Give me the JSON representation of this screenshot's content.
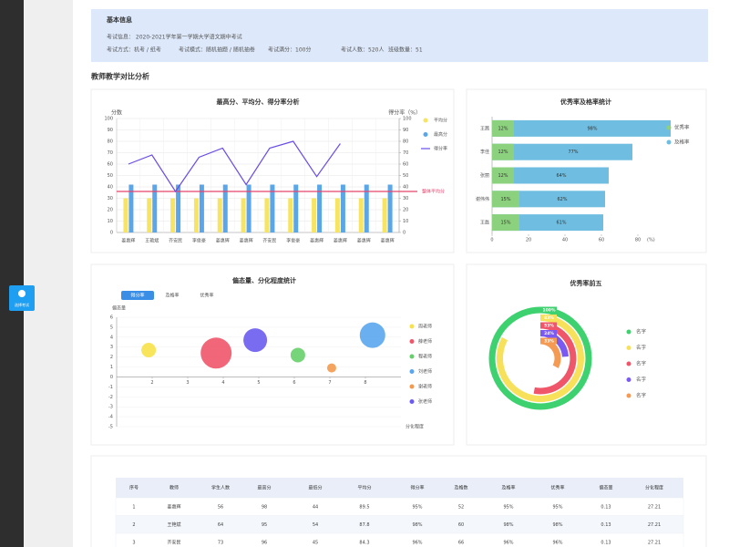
{
  "sidebar": {
    "button": "选择考试"
  },
  "info": {
    "title": "基本信息",
    "exam": "考试信息：  2020-2021学年第一学期大学语文期中考试",
    "fields": [
      "考试方式：机考 / 纸考",
      "考试模式：随机抽题 / 随机抽卷",
      "考试满分：100分",
      "考试人数：520人",
      "班级数量：51"
    ]
  },
  "section_title": "教师教学对比分析",
  "chart_data": [
    {
      "type": "bar",
      "title": "最高分、平均分、得分率分析",
      "y_label": "分数",
      "y2_label": "得分率（%）",
      "categories": [
        "姜惠辉",
        "王艳斌",
        "齐安民",
        "李俊豪",
        "姜惠辉",
        "姜惠辉",
        "齐安民",
        "李俊豪",
        "姜惠辉",
        "姜惠辉",
        "姜惠辉",
        "姜惠辉"
      ],
      "series": [
        {
          "name": "平均分",
          "color": "#f7e463",
          "values": [
            30,
            30,
            30,
            30,
            30,
            30,
            30,
            30,
            30,
            30,
            30,
            30
          ]
        },
        {
          "name": "最高分",
          "color": "#5aa6e8",
          "values": [
            42,
            42,
            42,
            42,
            42,
            42,
            42,
            42,
            42,
            42,
            42,
            42
          ]
        },
        {
          "name": "得分率",
          "type": "line",
          "axis": "y2",
          "color": "#6a4de8",
          "values": [
            60,
            68,
            36,
            66,
            74,
            42,
            74,
            80,
            49,
            78,
            null,
            null
          ]
        }
      ],
      "reference": {
        "name": "整体平均分",
        "value": 36,
        "color": "#e8436b"
      },
      "ylim": [
        0,
        100
      ],
      "yticks": [
        0,
        10,
        20,
        30,
        40,
        50,
        60,
        70,
        80,
        90,
        100
      ],
      "y2lim": [
        0,
        100
      ],
      "y2ticks": [
        0,
        10,
        20,
        30,
        40,
        50,
        60,
        70,
        80,
        90,
        100
      ],
      "grid": true
    },
    {
      "type": "hbar",
      "title": "优秀率及格率统计",
      "x_label": "(%)",
      "categories": [
        "王茜",
        "李佳",
        "张丽",
        "谢伟伟",
        "王磊"
      ],
      "series": [
        {
          "name": "优秀率",
          "color": "#8cd17d",
          "values": [
            12,
            12,
            12,
            15,
            15
          ],
          "value_labels": [
            "12%",
            "12%",
            "12%",
            "15%",
            "15%"
          ]
        },
        {
          "name": "及格率",
          "color": "#6fbde0",
          "values": [
            98,
            77,
            64,
            62,
            61
          ],
          "value_labels": [
            "98%",
            "77%",
            "64%",
            "62%",
            "61%"
          ]
        }
      ],
      "xlim": [
        0,
        100
      ],
      "xticks": [
        0,
        20,
        40,
        60,
        80
      ]
    },
    {
      "type": "bubble",
      "title": "偏态量、分化程度统计",
      "tabs": [
        "得分率",
        "及格率",
        "优秀率"
      ],
      "active_tab": 0,
      "y_label": "偏态量",
      "x_label": "分化程度",
      "series": [
        {
          "name": "周老师",
          "color": "#f7e24a",
          "x": [
            1.9
          ],
          "y": [
            2.7
          ],
          "sizes": [
            8
          ]
        },
        {
          "name": "薛老师",
          "color": "#f0566a",
          "x": [
            3.8
          ],
          "y": [
            2.4
          ],
          "sizes": [
            17
          ]
        },
        {
          "name": "程老师",
          "color": "#67cf6a",
          "x": [
            6.1
          ],
          "y": [
            2.2
          ],
          "sizes": [
            8
          ]
        },
        {
          "name": "刘老师",
          "color": "#5aa6ee",
          "x": [
            8.2
          ],
          "y": [
            4.2
          ],
          "sizes": [
            14
          ]
        },
        {
          "name": "谢老师",
          "color": "#f39a4d",
          "x": [
            7.05
          ],
          "y": [
            0.9
          ],
          "sizes": [
            5
          ]
        },
        {
          "name": "张老师",
          "color": "#6b5cf0",
          "x": [
            4.9
          ],
          "y": [
            3.7
          ],
          "sizes": [
            13
          ]
        }
      ],
      "xlim": [
        1,
        9
      ],
      "xticks": [
        2,
        3,
        4,
        5,
        6,
        7,
        8
      ],
      "ylim": [
        -5,
        6
      ],
      "yticks": [
        -5,
        -4,
        -3,
        -2,
        -1,
        0,
        1,
        2,
        3,
        4,
        5,
        6
      ],
      "grid": true
    },
    {
      "type": "radial",
      "title": "优秀率前五",
      "categories": [
        "名字",
        "名字",
        "名字",
        "名字",
        "名字"
      ],
      "values": [
        100,
        83,
        53,
        24,
        33
      ],
      "value_labels": [
        "100%",
        "83%",
        "53%",
        "24%",
        "33%"
      ],
      "colors": [
        "#3ed16f",
        "#f7e05a",
        "#f0566a",
        "#7a5af0",
        "#f59a52"
      ]
    }
  ],
  "table": {
    "header": [
      "序号",
      "教师",
      "学生人数",
      "最高分",
      "最低分",
      "平均分",
      "得分率",
      "及格数",
      "及格率",
      "优秀率",
      "偏态量",
      "分化程度"
    ],
    "rows": [
      [
        1,
        "姜惠辉",
        56,
        98,
        44,
        89.5,
        "95%",
        52,
        "95%",
        "95%",
        0.13,
        27.21
      ],
      [
        2,
        "王艳斌",
        64,
        95,
        54,
        87.8,
        "98%",
        60,
        "98%",
        "98%",
        0.13,
        27.21
      ],
      [
        3,
        "齐安民",
        73,
        96,
        45,
        84.3,
        "96%",
        66,
        "96%",
        "96%",
        0.13,
        27.21
      ]
    ]
  }
}
